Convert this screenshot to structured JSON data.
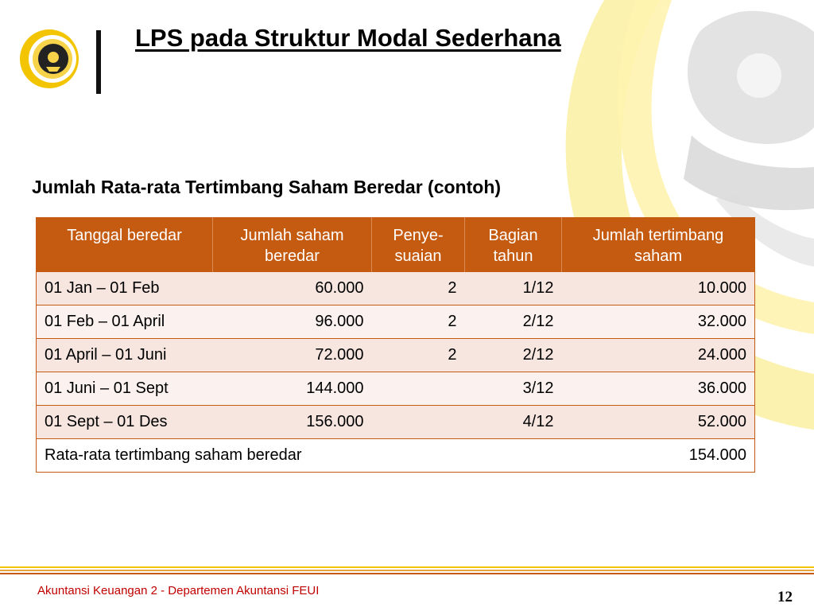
{
  "slide": {
    "title": "LPS pada Struktur Modal Sederhana",
    "subtitle": "Jumlah Rata-rata Tertimbang Saham Beredar (contoh)",
    "footer": "Akuntansi Keuangan 2 - Departemen Akuntansi FEUI",
    "page_number": "12"
  },
  "table": {
    "headers": [
      {
        "line1": "Tanggal beredar",
        "line2": ""
      },
      {
        "line1": "Jumlah saham",
        "line2": "beredar"
      },
      {
        "line1": "Penye-",
        "line2": "suaian"
      },
      {
        "line1": "Bagian",
        "line2": "tahun"
      },
      {
        "line1": "Jumlah tertimbang",
        "line2": "saham"
      }
    ],
    "rows": [
      {
        "period": "01 Jan – 01 Feb",
        "shares": "60.000",
        "adjustment": "2",
        "fraction": "1/12",
        "weighted": "10.000"
      },
      {
        "period": "01 Feb – 01 April",
        "shares": "96.000",
        "adjustment": "2",
        "fraction": "2/12",
        "weighted": "32.000"
      },
      {
        "period": "01 April – 01 Juni",
        "shares": "72.000",
        "adjustment": "2",
        "fraction": "2/12",
        "weighted": "24.000"
      },
      {
        "period": "01 Juni – 01 Sept",
        "shares": "144.000",
        "adjustment": "",
        "fraction": "3/12",
        "weighted": "36.000"
      },
      {
        "period": "01 Sept – 01 Des",
        "shares": "156.000",
        "adjustment": "",
        "fraction": "4/12",
        "weighted": "52.000"
      }
    ],
    "total": {
      "label": "Rata-rata tertimbang saham beredar",
      "value": "154.000"
    }
  },
  "colors": {
    "header_bg": "#c55a11",
    "accent_gold": "#f2c500",
    "footer_text": "#c00000"
  }
}
